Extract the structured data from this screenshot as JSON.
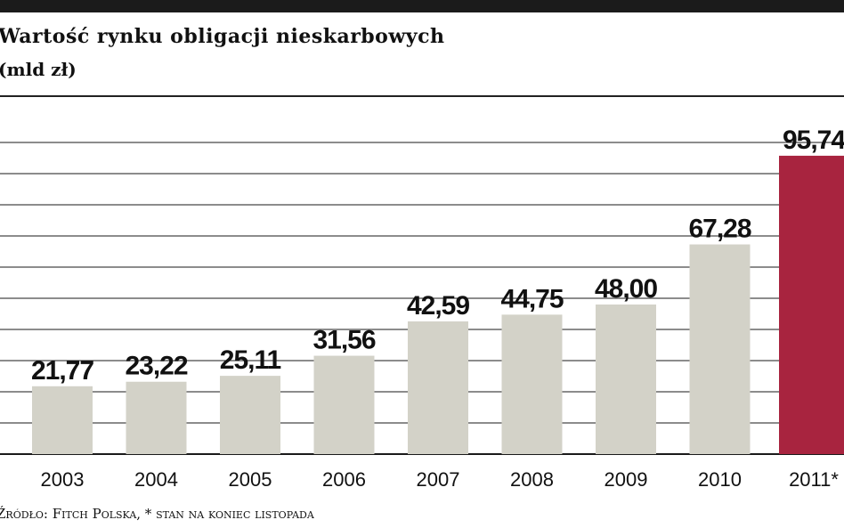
{
  "header": {
    "title": "Wartość rynku obligacji nieskarbowych",
    "subtitle": "(mld zł)"
  },
  "footer": {
    "source": "Źródło: Fitch Polska, * stan na koniec listopada"
  },
  "colors": {
    "bar_default": "#d3d2c8",
    "bar_highlight": "#a8243f",
    "grid": "#1a1a1a",
    "label": "#111111"
  },
  "chart_data": {
    "type": "bar",
    "title": "Wartość rynku obligacji nieskarbowych",
    "subtitle": "(mld zł)",
    "categories": [
      "2003",
      "2004",
      "2005",
      "2006",
      "2007",
      "2008",
      "2009",
      "2010",
      "2011*"
    ],
    "values": [
      21.77,
      23.22,
      25.11,
      31.56,
      42.59,
      44.75,
      48.0,
      67.28,
      95.74
    ],
    "value_labels": [
      "21,77",
      "23,22",
      "25,11",
      "31,56",
      "42,59",
      "44,75",
      "48,00",
      "67,28",
      "95,74"
    ],
    "highlight_index": 8,
    "ylim": [
      0,
      100
    ],
    "ytick_step": 10,
    "grid": true,
    "xlabel": "",
    "ylabel": ""
  }
}
